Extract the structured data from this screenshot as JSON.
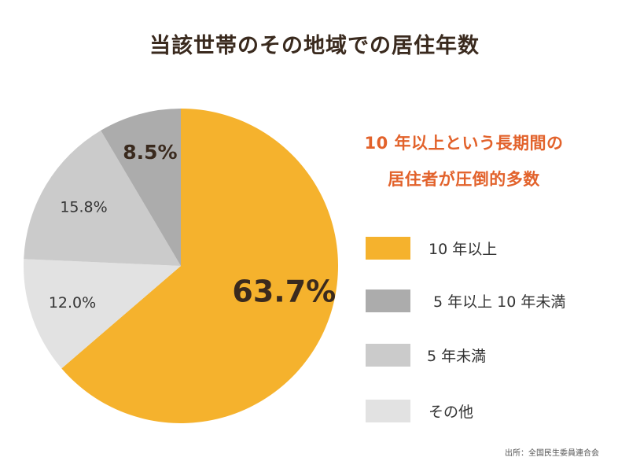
{
  "chart_data": {
    "type": "pie",
    "title": "当該世帯のその地域での居住年数",
    "slices": [
      {
        "label": "10 年以上",
        "value": 63.7,
        "value_label": "63.7%",
        "color": "#f5b22d"
      },
      {
        "label": "その他",
        "value": 12.0,
        "value_label": "12.0%",
        "color": "#e2e2e2"
      },
      {
        "label": "5 年未満",
        "value": 15.8,
        "value_label": "15.8%",
        "color": "#cbcbcb"
      },
      {
        "label": "5 年以上 10 年未満",
        "value": 8.5,
        "value_label": "8.5%",
        "color": "#acacac"
      }
    ],
    "legend_order": [
      "10 年以上",
      "5 年以上 10 年未満",
      "5 年未満",
      "その他"
    ],
    "legend_position": "right"
  },
  "callout": {
    "line1": "10 年以上という長期間の",
    "line2": "居住者が圧倒的多数"
  },
  "source": "出所：全国民生委員連合会"
}
